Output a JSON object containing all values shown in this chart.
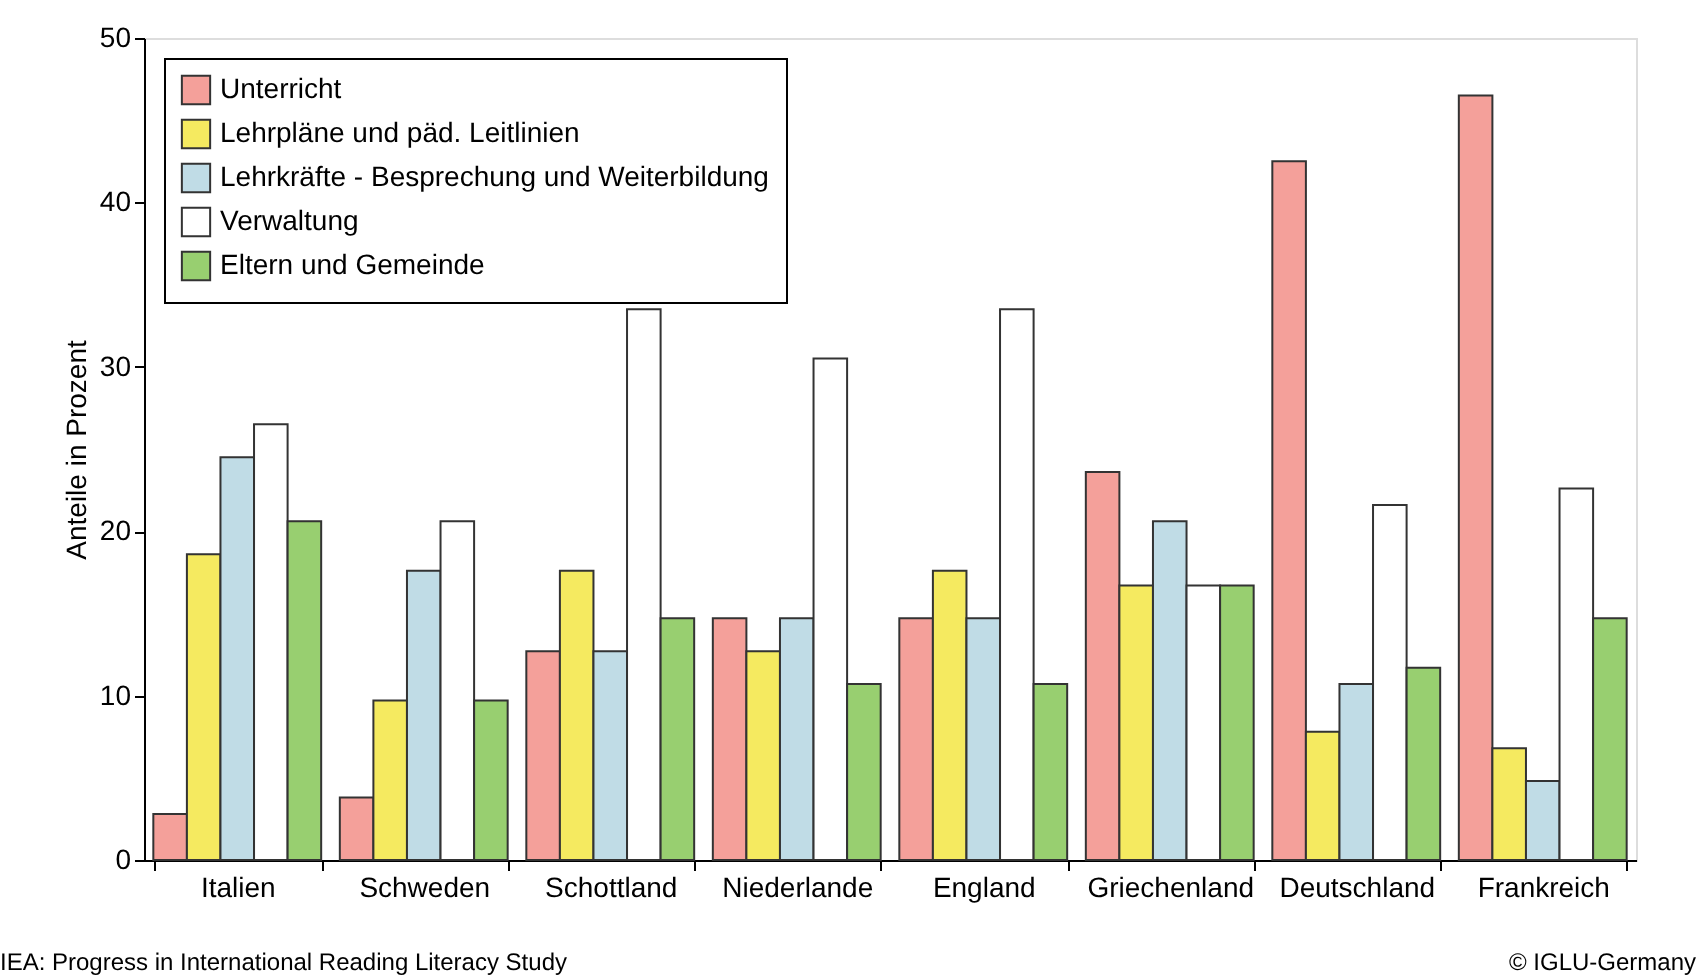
{
  "chart_data": {
    "type": "bar",
    "ylabel": "Anteile in Prozent",
    "categories": [
      "Italien",
      "Schweden",
      "Schottland",
      "Niederlande",
      "England",
      "Griechenland",
      "Deutschland",
      "Frankreich"
    ],
    "series": [
      {
        "name": "Unterricht",
        "color": "#f4a09a",
        "values": [
          2.8,
          3.8,
          12.7,
          14.7,
          14.7,
          23.6,
          42.5,
          46.5
        ]
      },
      {
        "name": "Lehrpläne und päd. Leitlinien",
        "color": "#f5ea60",
        "values": [
          18.6,
          9.7,
          17.6,
          12.7,
          17.6,
          16.7,
          7.8,
          6.8
        ]
      },
      {
        "name": "Lehrkräfte - Besprechung und Weiterbildung",
        "color": "#c0dce6",
        "values": [
          24.5,
          17.6,
          12.7,
          14.7,
          14.7,
          20.6,
          10.7,
          4.8
        ]
      },
      {
        "name": "Verwaltung",
        "color": "#ffffff",
        "values": [
          26.5,
          20.6,
          33.5,
          30.5,
          33.5,
          16.7,
          21.6,
          22.6
        ]
      },
      {
        "name": "Eltern und Gemeinde",
        "color": "#98cf70",
        "values": [
          20.6,
          9.7,
          14.7,
          10.7,
          10.7,
          16.7,
          11.7,
          14.7
        ]
      }
    ],
    "ylim": [
      0,
      50
    ],
    "yticks": [
      0,
      10,
      20,
      30,
      40,
      50
    ],
    "grid": false,
    "legend": "top left",
    "annotations": [
      "IEA: Progress in International Reading Literacy Study",
      "© IGLU-Germany"
    ]
  }
}
